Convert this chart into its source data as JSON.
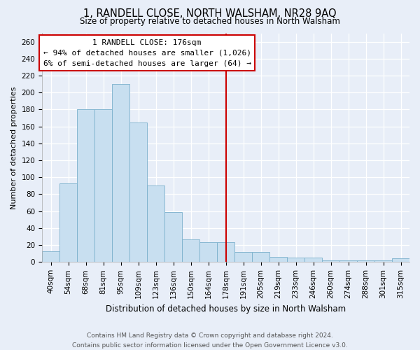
{
  "title": "1, RANDELL CLOSE, NORTH WALSHAM, NR28 9AQ",
  "subtitle": "Size of property relative to detached houses in North Walsham",
  "xlabel": "Distribution of detached houses by size in North Walsham",
  "ylabel": "Number of detached properties",
  "bar_labels": [
    "40sqm",
    "54sqm",
    "68sqm",
    "81sqm",
    "95sqm",
    "109sqm",
    "123sqm",
    "136sqm",
    "150sqm",
    "164sqm",
    "178sqm",
    "191sqm",
    "205sqm",
    "219sqm",
    "233sqm",
    "246sqm",
    "260sqm",
    "274sqm",
    "288sqm",
    "301sqm",
    "315sqm"
  ],
  "bar_values": [
    13,
    93,
    180,
    180,
    210,
    165,
    90,
    59,
    27,
    23,
    23,
    12,
    12,
    6,
    5,
    5,
    2,
    2,
    2,
    2,
    4
  ],
  "bar_color": "#c8dff0",
  "bar_edge_color": "#7ab0cc",
  "vline_x": 10,
  "vline_color": "#cc0000",
  "annotation_title": "1 RANDELL CLOSE: 176sqm",
  "annotation_line1": "← 94% of detached houses are smaller (1,026)",
  "annotation_line2": "6% of semi-detached houses are larger (64) →",
  "annotation_box_facecolor": "#ffffff",
  "annotation_box_edgecolor": "#cc0000",
  "ylim": [
    0,
    270
  ],
  "yticks": [
    0,
    20,
    40,
    60,
    80,
    100,
    120,
    140,
    160,
    180,
    200,
    220,
    240,
    260
  ],
  "footer_line1": "Contains HM Land Registry data © Crown copyright and database right 2024.",
  "footer_line2": "Contains public sector information licensed under the Open Government Licence v3.0.",
  "bg_color": "#e8eef8",
  "plot_bg_color": "#e8eef8",
  "grid_color": "#ffffff",
  "title_fontsize": 10.5,
  "subtitle_fontsize": 8.5,
  "xlabel_fontsize": 8.5,
  "ylabel_fontsize": 8,
  "tick_fontsize": 7.5,
  "footer_fontsize": 6.5
}
